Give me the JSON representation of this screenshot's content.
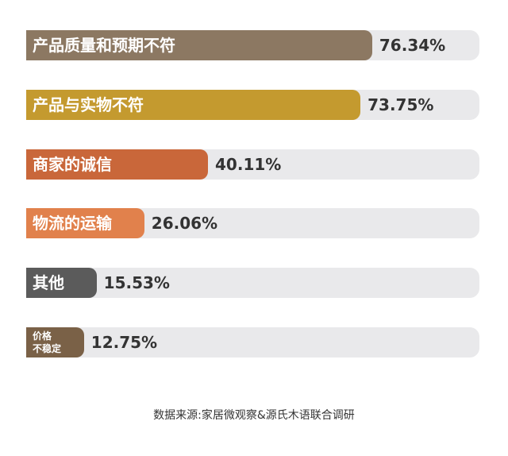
{
  "chart_data": {
    "type": "bar",
    "orientation": "horizontal",
    "categories": [
      "产品质量和预期不符",
      "产品与实物不符",
      "商家的诚信",
      "物流的运输",
      "其他",
      "价格\n不稳定"
    ],
    "series": [
      {
        "colors": [
          "#8c7862",
          "#c49a2f",
          "#c9673a",
          "#e1814c",
          "#5b5b5b",
          "#7a6147"
        ],
        "values": [
          76.34,
          73.75,
          40.11,
          26.06,
          15.53,
          12.75
        ],
        "value_labels": [
          "76.34%",
          "73.75%",
          "40.11%",
          "26.06%",
          "15.53%",
          "12.75%"
        ]
      }
    ],
    "xlim": [
      0,
      100
    ],
    "track_color": "#e9e9eb",
    "source": "数据来源:家居微观察&源氏木语联合调研"
  }
}
